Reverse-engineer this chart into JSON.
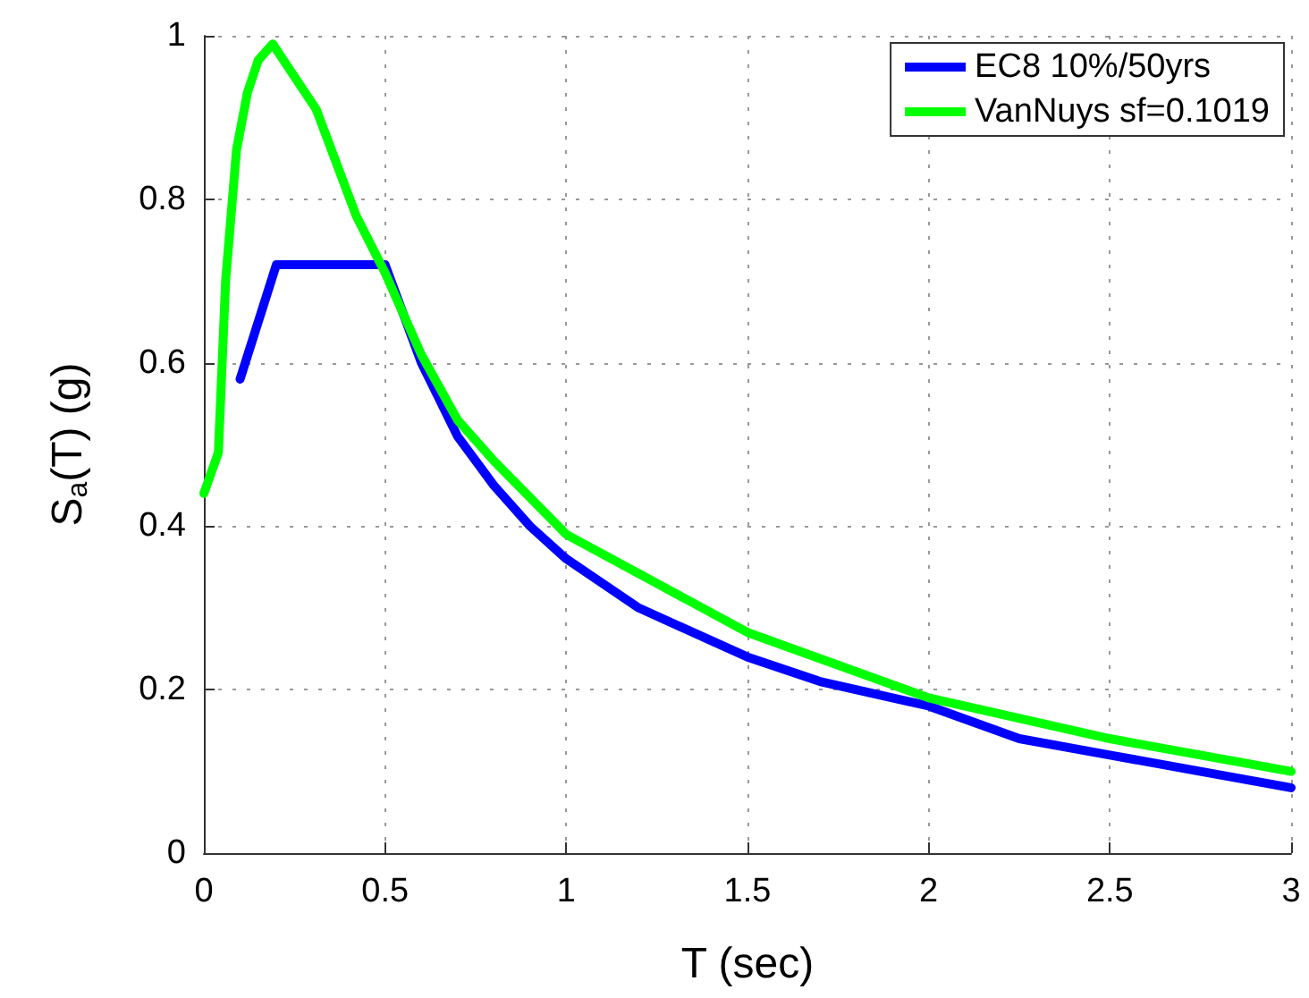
{
  "chart_data": {
    "type": "line",
    "xlabel": "T (sec)",
    "ylabel": "S$_{a}$(T) (g)",
    "xlim": [
      0,
      3
    ],
    "xticks": [
      0,
      0.5,
      1,
      1.5,
      2,
      2.5,
      3
    ],
    "ylim": [
      0,
      1
    ],
    "yticks": [
      0,
      0.2,
      0.4,
      0.6,
      0.8,
      1
    ],
    "grid": true,
    "legend": "top right",
    "line_style": "solid",
    "marker": "none",
    "series": [
      {
        "name": "EC8 10%/50yrs",
        "color": "#0000ff",
        "x": [
          0.1,
          0.2,
          0.5,
          0.6,
          0.7,
          0.8,
          0.9,
          1.0,
          1.2,
          1.4,
          1.5,
          1.7,
          2.0,
          2.25,
          2.5,
          2.75,
          3.0
        ],
        "values": [
          0.58,
          0.72,
          0.72,
          0.6,
          0.51,
          0.45,
          0.4,
          0.36,
          0.3,
          0.26,
          0.24,
          0.21,
          0.18,
          0.14,
          0.12,
          0.1,
          0.08
        ]
      },
      {
        "name": "VanNuys sf=0.1019",
        "color": "#00ff00",
        "x": [
          0,
          0.04,
          0.06,
          0.09,
          0.12,
          0.15,
          0.19,
          0.22,
          0.31,
          0.42,
          0.5,
          0.6,
          0.7,
          0.8,
          1.0,
          1.25,
          1.5,
          2.0,
          2.5,
          3.0
        ],
        "values": [
          0.44,
          0.49,
          0.7,
          0.86,
          0.93,
          0.97,
          0.99,
          0.97,
          0.91,
          0.78,
          0.71,
          0.61,
          0.53,
          0.48,
          0.39,
          0.33,
          0.27,
          0.19,
          0.14,
          0.1
        ]
      }
    ]
  }
}
